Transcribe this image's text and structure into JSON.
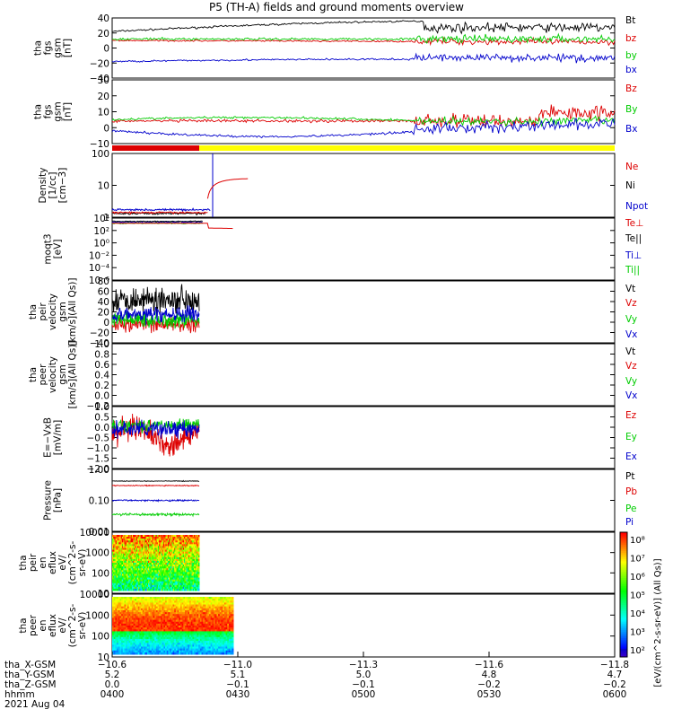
{
  "title": "P5 (TH-A) fields and ground moments overview",
  "colors": {
    "black": "#000000",
    "red": "#dd0000",
    "green": "#00cc00",
    "blue": "#0000cc",
    "yellow": "#ffff00"
  },
  "chart_data": [
    {
      "type": "line",
      "name": "fgs-gsm",
      "ylabel": [
        "tha",
        "fgs",
        "gsm",
        "[nT]"
      ],
      "ylim": [
        -40,
        40
      ],
      "yticks": [
        "40",
        "20",
        "0",
        "−20",
        "−40"
      ],
      "series": [
        {
          "name": "Bt",
          "color": "#000000"
        },
        {
          "name": "bz",
          "color": "#dd0000"
        },
        {
          "name": "by",
          "color": "#00cc00"
        },
        {
          "name": "bx",
          "color": "#0000cc"
        }
      ]
    },
    {
      "type": "line",
      "name": "fgs-gsm-dsl",
      "ylabel": [
        "tha",
        "fgs",
        "gsm",
        "[nT]"
      ],
      "ylim": [
        -15,
        30
      ],
      "yticks": [
        "30",
        "20",
        "10",
        "0",
        "−10"
      ],
      "series": [
        {
          "name": "Bz",
          "color": "#dd0000"
        },
        {
          "name": "By",
          "color": "#00cc00"
        },
        {
          "name": "Bx",
          "color": "#0000cc"
        }
      ]
    },
    {
      "type": "line",
      "name": "density",
      "ylabel": [
        "Density",
        "[1/cc]",
        "[cm−3]"
      ],
      "ylim": [
        0.2,
        200
      ],
      "log": true,
      "yticks": [
        "100",
        "10",
        "1"
      ],
      "series": [
        {
          "name": "Ne",
          "color": "#dd0000"
        },
        {
          "name": "Ni",
          "color": "#000000"
        },
        {
          "name": "Npot",
          "color": "#0000cc"
        }
      ]
    },
    {
      "type": "line",
      "name": "temperature",
      "ylabel": [
        "moqt3",
        "[eV]"
      ],
      "ylim": [
        1e-06,
        10000
      ],
      "log": true,
      "yticks": [
        "10⁴",
        "10²",
        "10⁰",
        "10⁻²",
        "10⁻⁴",
        "10⁻⁶"
      ],
      "series": [
        {
          "name": "Te⊥",
          "color": "#dd0000"
        },
        {
          "name": "Te||",
          "color": "#000000"
        },
        {
          "name": "Ti⊥",
          "color": "#0000cc"
        },
        {
          "name": "Ti||",
          "color": "#00cc00"
        }
      ]
    },
    {
      "type": "line",
      "name": "peir-velocity",
      "ylabel": [
        "tha",
        "peir",
        "velocity",
        "gsm",
        "[km/s](All Qs)]"
      ],
      "ylim": [
        -40,
        80
      ],
      "yticks": [
        "80",
        "60",
        "40",
        "20",
        "0",
        "−20",
        "−40"
      ],
      "series": [
        {
          "name": "Vt",
          "color": "#000000"
        },
        {
          "name": "Vz",
          "color": "#dd0000"
        },
        {
          "name": "Vy",
          "color": "#00cc00"
        },
        {
          "name": "Vx",
          "color": "#0000cc"
        }
      ]
    },
    {
      "type": "line",
      "name": "peer-velocity",
      "ylabel": [
        "tha",
        "peer",
        "velocity",
        "gsm",
        "[km/s](All Qs)]"
      ],
      "ylim": [
        -0.2,
        1.0
      ],
      "yticks": [
        "1.0",
        "0.8",
        "0.6",
        "0.4",
        "0.2",
        "0.0",
        "−0.2"
      ],
      "series": [
        {
          "name": "Vt",
          "color": "#000000"
        },
        {
          "name": "Vz",
          "color": "#dd0000"
        },
        {
          "name": "Vy",
          "color": "#00cc00"
        },
        {
          "name": "Vx",
          "color": "#0000cc"
        }
      ]
    },
    {
      "type": "line",
      "name": "efield",
      "ylabel": [
        "E=−VxB",
        "[mV/m]"
      ],
      "ylim": [
        -2.0,
        1.0
      ],
      "yticks": [
        "1.0",
        "0.5",
        "0.0",
        "−0.5",
        "−1.0",
        "−1.5",
        "−2.0"
      ],
      "series": [
        {
          "name": "Ez",
          "color": "#dd0000"
        },
        {
          "name": "Ey",
          "color": "#00cc00"
        },
        {
          "name": "Ex",
          "color": "#0000cc"
        }
      ]
    },
    {
      "type": "line",
      "name": "pressure",
      "ylabel": [
        "Pressure",
        "[nPa]"
      ],
      "ylim": [
        0.01,
        1.0
      ],
      "log": true,
      "yticks": [
        "1.00",
        "0.10",
        "0.01"
      ],
      "series": [
        {
          "name": "Pt",
          "color": "#000000"
        },
        {
          "name": "Pb",
          "color": "#dd0000"
        },
        {
          "name": "Pe",
          "color": "#00cc00"
        },
        {
          "name": "Pi",
          "color": "#0000cc"
        }
      ]
    },
    {
      "type": "heatmap",
      "name": "peir-en-eflux",
      "ylabel": [
        "tha",
        "peir",
        "en",
        "eflux",
        "eV/",
        "(cm^2-s-",
        "sr-eV)"
      ],
      "ylim": [
        7,
        30000
      ],
      "log": true,
      "yticks": [
        "10000",
        "1000",
        "100",
        "10"
      ]
    },
    {
      "type": "heatmap",
      "name": "peer-en-eflux",
      "ylabel": [
        "tha",
        "peer",
        "en",
        "eflux",
        "eV/",
        "(cm^2-s-",
        "sr-eV)"
      ],
      "ylim": [
        7,
        30000
      ],
      "log": true,
      "yticks": [
        "10000",
        "1000",
        "100",
        "10"
      ]
    }
  ],
  "colorbar": {
    "label": "[eV/(cm^2-s-sr-eV)] (All Qs)]",
    "ticks": [
      "10⁸",
      "10⁷",
      "10⁶",
      "10⁵",
      "10⁴",
      "10³",
      "10²"
    ]
  },
  "bottom_axis": {
    "row_labels": [
      "tha_X-GSM",
      "tha_Y-GSM",
      "tha_Z-GSM",
      "hhmm",
      "2021 Aug 04"
    ],
    "columns": [
      {
        "x": "−10.6",
        "y": "5.2",
        "z": "0.0",
        "t": "0400"
      },
      {
        "x": "−11.0",
        "y": "5.1",
        "z": "−0.1",
        "t": "0430"
      },
      {
        "x": "−11.3",
        "y": "5.0",
        "z": "−0.1",
        "t": "0500"
      },
      {
        "x": "−11.6",
        "y": "4.8",
        "z": "−0.2",
        "t": "0530"
      },
      {
        "x": "−11.8",
        "y": "4.7",
        "z": "−0.2",
        "t": "0600"
      }
    ]
  }
}
